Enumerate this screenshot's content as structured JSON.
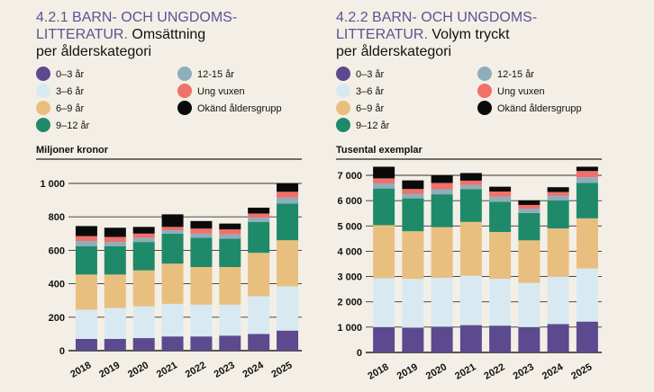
{
  "colors": {
    "background": "#f4efe6",
    "title_accent": "#5b5294",
    "c0_3": "#5b4a8e",
    "c3_6": "#d8e9f2",
    "c6_9": "#e9bf7f",
    "c9_12": "#1f8a6a",
    "c12_15": "#8eaebb",
    "c_ung": "#f0706a",
    "c_okand": "#0a0a0a"
  },
  "legend": [
    {
      "label": "0–3 år",
      "color_key": "c0_3"
    },
    {
      "label": "3–6 år",
      "color_key": "c3_6"
    },
    {
      "label": "6–9 år",
      "color_key": "c6_9"
    },
    {
      "label": "9–12 år",
      "color_key": "c9_12"
    },
    {
      "label": "12-15 år",
      "color_key": "c12_15"
    },
    {
      "label": "Ung vuxen",
      "color_key": "c_ung"
    },
    {
      "label": "Okänd åldersgrupp",
      "color_key": "c_okand"
    }
  ],
  "chart_data": [
    {
      "type": "bar",
      "stacked": true,
      "title_line1": "4.2.1 BARN- OCH UNGDOMS-",
      "title_line2_accent": "LITTERATUR.",
      "title_line2_rest": " Omsättning",
      "title_line3": "per ålderskategori",
      "ylabel": "Miljoner kronor",
      "ylim": [
        0,
        1000
      ],
      "yticks": [
        0,
        200,
        400,
        600,
        800,
        1000
      ],
      "ytick_labels": [
        "0",
        "200",
        "400",
        "600",
        "800",
        "1 000"
      ],
      "categories": [
        "2018",
        "2019",
        "2020",
        "2021",
        "2022",
        "2023",
        "2024",
        "2025"
      ],
      "series": [
        {
          "name": "0–3 år",
          "color_key": "c0_3",
          "values": [
            70,
            70,
            75,
            85,
            85,
            90,
            100,
            120
          ]
        },
        {
          "name": "3–6 år",
          "color_key": "c3_6",
          "values": [
            175,
            185,
            190,
            195,
            190,
            185,
            225,
            265
          ]
        },
        {
          "name": "6–9 år",
          "color_key": "c6_9",
          "values": [
            210,
            200,
            215,
            240,
            225,
            225,
            260,
            275
          ]
        },
        {
          "name": "9–12 år",
          "color_key": "c9_12",
          "values": [
            170,
            170,
            170,
            180,
            175,
            170,
            185,
            220
          ]
        },
        {
          "name": "12-15 år",
          "color_key": "c12_15",
          "values": [
            30,
            25,
            25,
            20,
            25,
            25,
            25,
            35
          ]
        },
        {
          "name": "Ung vuxen",
          "color_key": "c_ung",
          "values": [
            30,
            30,
            25,
            20,
            30,
            30,
            25,
            35
          ]
        },
        {
          "name": "Okänd åldersgrupp",
          "color_key": "c_okand",
          "values": [
            60,
            55,
            40,
            75,
            45,
            35,
            35,
            50
          ]
        }
      ]
    },
    {
      "type": "bar",
      "stacked": true,
      "title_line1": "4.2.2 BARN- OCH UNGDOMS-",
      "title_line2_accent": "LITTERATUR.",
      "title_line2_rest": " Volym tryckt",
      "title_line3": "per ålderskategori",
      "ylabel": "Tusental exemplar",
      "ylim": [
        0,
        7000
      ],
      "yticks": [
        0,
        1000,
        2000,
        3000,
        4000,
        5000,
        6000,
        7000
      ],
      "ytick_labels": [
        "0",
        "1 000",
        "2 000",
        "3 000",
        "4 000",
        "5 000",
        "6 000",
        "7 000"
      ],
      "categories": [
        "2018",
        "2019",
        "2020",
        "2021",
        "2022",
        "2023",
        "2024",
        "2025"
      ],
      "series": [
        {
          "name": "0–3 år",
          "color_key": "c0_3",
          "values": [
            1000,
            980,
            1020,
            1080,
            1060,
            1000,
            1120,
            1220
          ]
        },
        {
          "name": "3–6 år",
          "color_key": "c3_6",
          "values": [
            1930,
            1930,
            1930,
            1950,
            1850,
            1750,
            1880,
            2100
          ]
        },
        {
          "name": "6–9 år",
          "color_key": "c6_9",
          "values": [
            2100,
            1880,
            2000,
            2130,
            1850,
            1680,
            1900,
            1980
          ]
        },
        {
          "name": "9–12 år",
          "color_key": "c9_12",
          "values": [
            1450,
            1300,
            1300,
            1300,
            1200,
            1080,
            1100,
            1400
          ]
        },
        {
          "name": "12-15 år",
          "color_key": "c12_15",
          "values": [
            200,
            180,
            200,
            160,
            200,
            170,
            200,
            220
          ]
        },
        {
          "name": "Ung vuxen",
          "color_key": "c_ung",
          "values": [
            200,
            190,
            250,
            170,
            200,
            150,
            140,
            250
          ]
        },
        {
          "name": "Okänd åldersgrupp",
          "color_key": "c_okand",
          "values": [
            460,
            340,
            300,
            300,
            190,
            180,
            190,
            170
          ]
        }
      ]
    }
  ]
}
